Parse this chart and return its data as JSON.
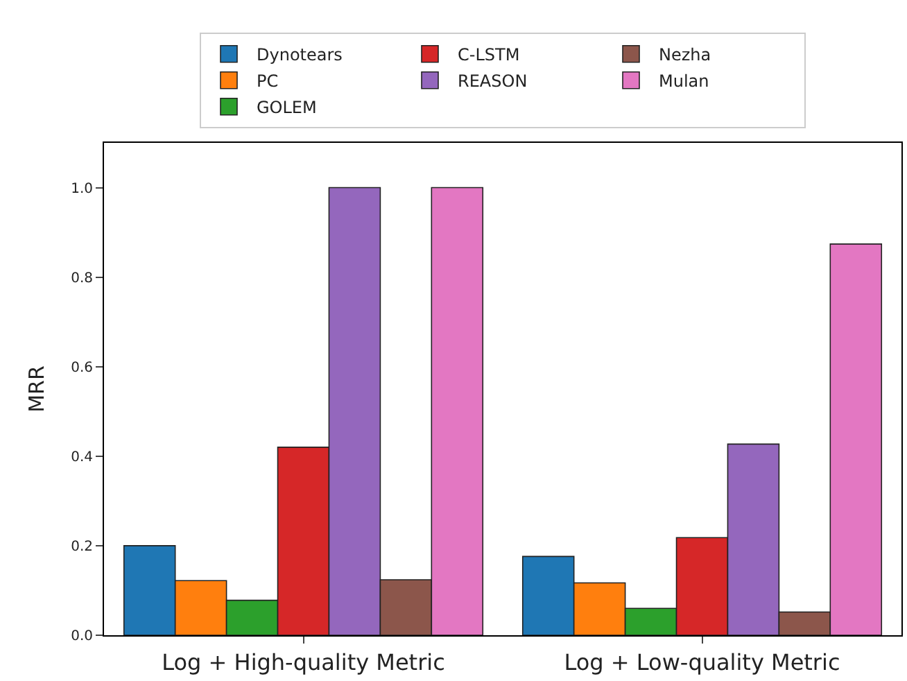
{
  "chart_data": {
    "type": "bar",
    "ylabel": "MRR",
    "categories": [
      "Log + High-quality Metric",
      "Log + Low-quality Metric"
    ],
    "series": [
      {
        "name": "Dynotears",
        "color": "#1f77b4",
        "values": [
          0.2,
          0.176
        ]
      },
      {
        "name": "PC",
        "color": "#ff7f0e",
        "values": [
          0.122,
          0.117
        ]
      },
      {
        "name": "GOLEM",
        "color": "#2ca02c",
        "values": [
          0.078,
          0.06
        ]
      },
      {
        "name": "C-LSTM",
        "color": "#d62728",
        "values": [
          0.42,
          0.218
        ]
      },
      {
        "name": "REASON",
        "color": "#9467bd",
        "values": [
          1.0,
          0.427
        ]
      },
      {
        "name": "Nezha",
        "color": "#8c564b",
        "values": [
          0.124,
          0.052
        ]
      },
      {
        "name": "Mulan",
        "color": "#e377c2",
        "values": [
          1.0,
          0.874
        ]
      }
    ],
    "ylim": [
      0,
      1.1
    ],
    "yticks": [
      {
        "value": 0,
        "label": "0.0"
      },
      0.2,
      0.4,
      0.6,
      0.8,
      {
        "value": 1,
        "label": "1.0"
      }
    ],
    "legend": "top"
  }
}
